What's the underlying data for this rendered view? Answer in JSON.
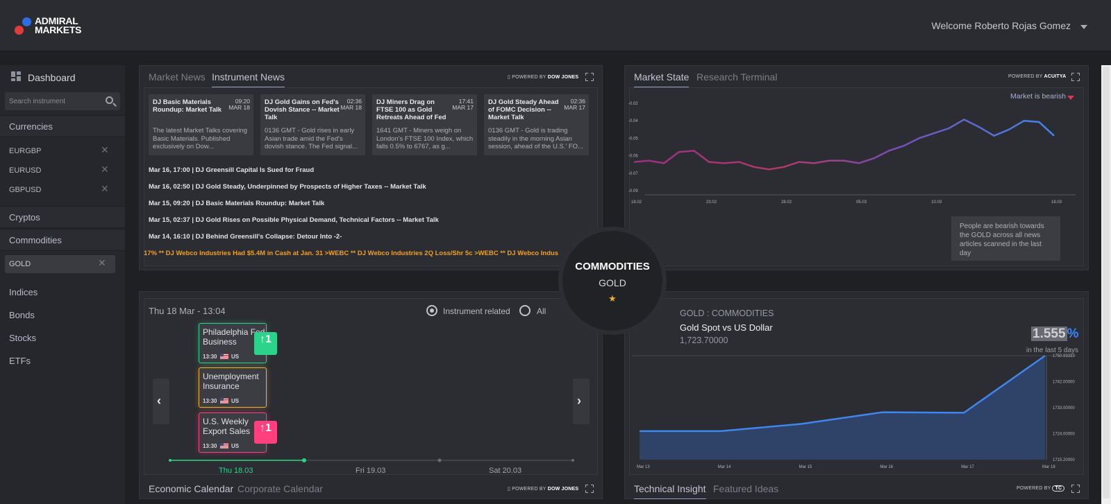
{
  "header": {
    "brand_line1": "ADMIRAL",
    "brand_line2": "MARKETS",
    "welcome": "Welcome Roberto Rojas Gomez"
  },
  "sidebar": {
    "dashboard": "Dashboard",
    "search_placeholder": "Search instrument",
    "currencies": "Currencies",
    "currency_items": [
      "EURGBP",
      "EURUSD",
      "GBPUSD"
    ],
    "cryptos": "Cryptos",
    "commodities": "Commodities",
    "commodity_items": [
      "GOLD"
    ],
    "indices": "Indices",
    "bonds": "Bonds",
    "stocks": "Stocks",
    "etfs": "ETFs",
    "remove_glyph": "✕"
  },
  "news": {
    "tabs": [
      "Market News",
      "Instrument News"
    ],
    "powered_by": "POWERED BY",
    "provider": "DOW JONES",
    "cards": [
      {
        "title": "DJ Basic Materials Roundup: Market Talk",
        "time": "09:20",
        "date": "MAR 18",
        "text": "The latest Market Talks covering Basic Materials. Published exclusively on Dow..."
      },
      {
        "title": "DJ Gold Gains on Fed's Dovish Stance -- Market Talk",
        "time": "02:36",
        "date": "MAR 18",
        "text": "0136 GMT - Gold rises in early Asian trade amid the Fed's dovish stance. The Fed signal..."
      },
      {
        "title": "DJ Miners Drag on FTSE 100 as Gold Retreats Ahead of Fed",
        "time": "17:41",
        "date": "MAR 17",
        "text": "1641 GMT - Miners weigh on London's FTSE 100 Index, which falls 0.5% to 6767, as g..."
      },
      {
        "title": "DJ Gold Steady Ahead of FOMC Decision -- Market Talk",
        "time": "02:36",
        "date": "MAR 17",
        "text": "0136 GMT - Gold is trading steadily in the morning Asian session, ahead of the U.S.' FO..."
      }
    ],
    "headlines": [
      "Mar 16, 17:00 | DJ Greensill Capital Is Sued for Fraud",
      "Mar 16, 02:50 | DJ Gold Steady, Underpinned by Prospects of Higher Taxes -- Market Talk",
      "Mar 15, 09:20 | DJ Basic Materials Roundup: Market Talk",
      "Mar 15, 02:37 | DJ Gold Rises on Possible Physical Demand, Technical Factors -- Market Talk",
      "Mar 14, 16:10 | DJ Behind Greensill's Collapse: Detour Into -2-"
    ],
    "ticker": "17% ** DJ Webco Industries Had $5.4M in Cash at Jan. 31 >WEBC ** DJ Webco Industries 2Q Loss/Shr 5c >WEBC ** DJ Webco Indus"
  },
  "market_state": {
    "tabs": [
      "Market State",
      "Research Terminal"
    ],
    "powered_by": "POWERED BY",
    "provider": "ACUITYA",
    "status": "Market is bearish",
    "summary": "People are bearish towards the GOLD across all news articles scanned in the last day",
    "y_ticks": [
      "-0.02",
      "-0.04",
      "-0.05",
      "-0.06",
      "-0.07",
      "-0.09"
    ],
    "x_ticks": [
      "18.02",
      "23.02",
      "28.02",
      "05.03",
      "10.03",
      "18.03"
    ]
  },
  "center": {
    "category": "COMMODITIES",
    "instrument": "GOLD",
    "star": "★"
  },
  "calendar": {
    "datetime": "Thu 18 Mar - 13:04",
    "filter_instrument": "Instrument related",
    "filter_all": "All",
    "prev": "‹",
    "next": "›",
    "events": [
      {
        "name": "Philadelphia Fed Business",
        "time": "13:30",
        "country": "US",
        "impact": "↑1",
        "color": "#2bd48a"
      },
      {
        "name": "Unemployment Insurance",
        "time": "13:30",
        "country": "US",
        "impact": "",
        "color": "#f2b233"
      },
      {
        "name": "U.S. Weekly Export Sales",
        "time": "13:30",
        "country": "US",
        "impact": "↑1",
        "color": "#ff3f7e"
      }
    ],
    "days": [
      "Thu 18.03",
      "Fri 19.03",
      "Sat 20.03"
    ],
    "tabs": [
      "Economic Calendar",
      "Corporate Calendar"
    ],
    "powered_by": "POWERED BY",
    "provider": "DOW JONES"
  },
  "technical": {
    "header": "GOLD : COMMODITIES",
    "pair": "Gold Spot vs US Dollar",
    "price": "1,723.70000",
    "change_value": "1.555",
    "change_sign": "%",
    "change_period": "in the last 5 days",
    "tabs": [
      "Technical Insight",
      "Featured Ideas"
    ],
    "powered_by": "POWERED BY",
    "provider": "TC"
  },
  "chart_data": [
    {
      "type": "line",
      "title": "",
      "x": [
        "18.02",
        "19.02",
        "20.02",
        "21.02",
        "22.02",
        "23.02",
        "24.02",
        "25.02",
        "26.02",
        "27.02",
        "28.02",
        "01.03",
        "02.03",
        "03.03",
        "04.03",
        "05.03",
        "06.03",
        "07.03",
        "08.03",
        "09.03",
        "10.03",
        "11.03",
        "12.03",
        "13.03",
        "14.03",
        "15.03",
        "16.03",
        "17.03",
        "18.03"
      ],
      "series": [
        {
          "values": [
            -0.067,
            -0.066,
            -0.068,
            -0.059,
            -0.058,
            -0.067,
            -0.068,
            -0.067,
            -0.071,
            -0.073,
            -0.071,
            -0.067,
            -0.068,
            -0.066,
            -0.066,
            -0.068,
            -0.064,
            -0.058,
            -0.054,
            -0.048,
            -0.044,
            -0.04,
            -0.033,
            -0.039,
            -0.046,
            -0.041,
            -0.034,
            -0.035,
            -0.046
          ]
        }
      ],
      "yticks": [
        "-0.02",
        "-0.04",
        "-0.05",
        "-0.06",
        "-0.07",
        "-0.09"
      ],
      "xticks": [
        "18.02",
        "23.02",
        "28.02",
        "05.03",
        "10.03",
        "18.03"
      ],
      "grid": false
    },
    {
      "type": "area",
      "title": "",
      "x": [
        "Mar 13",
        "Mar 14",
        "Mar 15",
        "Mar 16",
        "Mar 17",
        "Mar 18"
      ],
      "series": [
        {
          "values": [
            1725.0,
            1725.0,
            1727.5,
            1731.5,
            1731.3,
            1750.9
          ]
        }
      ],
      "ylim": [
        1715.2,
        1750.93333
      ],
      "yticks": [
        "1750.93333",
        "1742.00000",
        "1733.00000",
        "1724.00000",
        "1715.20000"
      ],
      "grid": false
    }
  ]
}
